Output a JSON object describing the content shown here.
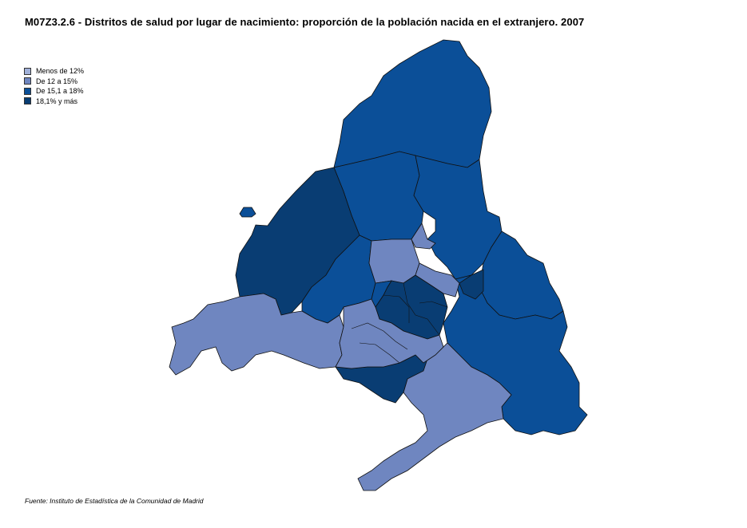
{
  "title": "M07Z3.2.6 - Distritos de salud por lugar de nacimiento: proporción de la población nacida en el extranjero. 2007",
  "legend": [
    {
      "label": "Menos de 12%",
      "color": "#a0b0d8"
    },
    {
      "label": "De 12 a 15%",
      "color": "#6f86c0"
    },
    {
      "label": "De 15,1 a 18%",
      "color": "#0b4f98"
    },
    {
      "label": "18,1% y más",
      "color": "#093d73"
    }
  ],
  "source": "Fuente: Instituto de Estadística de la Comunidad de Madrid",
  "regions": [
    {
      "name": "northern-sierra-district",
      "class": 2
    },
    {
      "name": "north-central-district",
      "class": 2
    },
    {
      "name": "northeast-district",
      "class": 2
    },
    {
      "name": "northwest-district",
      "class": 3
    },
    {
      "name": "west-central-district",
      "class": 2
    },
    {
      "name": "north-inner-district",
      "class": 1
    },
    {
      "name": "small-north-enclave-district",
      "class": 1
    },
    {
      "name": "east-henares-district",
      "class": 2
    },
    {
      "name": "southeast-district",
      "class": 2
    },
    {
      "name": "east-small-district",
      "class": 3
    },
    {
      "name": "southwest-district",
      "class": 1
    },
    {
      "name": "southern-district",
      "class": 1
    },
    {
      "name": "south-central-district",
      "class": 3
    },
    {
      "name": "capital-core-district",
      "class": 3
    },
    {
      "name": "south-suburban-districts",
      "class": 1
    },
    {
      "name": "capital-inner-west-district",
      "class": 2
    },
    {
      "name": "capital-inner-east-district",
      "class": 1
    },
    {
      "name": "isolated-northwest-enclave",
      "class": 2
    }
  ]
}
